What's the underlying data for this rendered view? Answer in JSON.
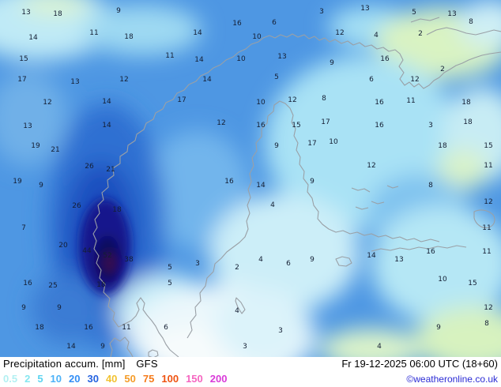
{
  "titlebar": {
    "product": "Precipitation accum.",
    "unit": "[mm]",
    "model": "GFS",
    "datetime": "Fr 19-12-2025 06:00 UTC (18+60)",
    "copyright": "©weatheronline.co.uk"
  },
  "legend": {
    "values": [
      {
        "label": "0.5",
        "color": "#b2f0f2"
      },
      {
        "label": "2",
        "color": "#86e7f0"
      },
      {
        "label": "5",
        "color": "#5cd4f0"
      },
      {
        "label": "10",
        "color": "#4cb2f8"
      },
      {
        "label": "20",
        "color": "#338ef5"
      },
      {
        "label": "30",
        "color": "#2563e0"
      },
      {
        "label": "40",
        "color": "#f2c231"
      },
      {
        "label": "50",
        "color": "#f59c28"
      },
      {
        "label": "75",
        "color": "#f57b1b"
      },
      {
        "label": "100",
        "color": "#ef5311"
      },
      {
        "label": "150",
        "color": "#f566c0"
      },
      {
        "label": "200",
        "color": "#d93ad9"
      }
    ]
  },
  "map": {
    "colors": {
      "ocean_base": "#4e97e3",
      "high_precip_core": "#0c0c5e",
      "coastline": "#9aa0a6"
    },
    "values": [
      [
        33,
        18,
        "13"
      ],
      [
        73,
        20,
        "18"
      ],
      [
        150,
        16,
        "9"
      ],
      [
        407,
        17,
        "3"
      ],
      [
        462,
        13,
        "13"
      ],
      [
        524,
        18,
        "5"
      ],
      [
        572,
        20,
        "13"
      ],
      [
        300,
        32,
        "16"
      ],
      [
        347,
        31,
        "6"
      ],
      [
        596,
        30,
        "8"
      ],
      [
        42,
        50,
        "14"
      ],
      [
        119,
        44,
        "11"
      ],
      [
        163,
        49,
        "18"
      ],
      [
        250,
        44,
        "14"
      ],
      [
        325,
        49,
        "10"
      ],
      [
        430,
        44,
        "12"
      ],
      [
        476,
        47,
        "4"
      ],
      [
        532,
        45,
        "2"
      ],
      [
        30,
        77,
        "15"
      ],
      [
        215,
        73,
        "11"
      ],
      [
        252,
        78,
        "14"
      ],
      [
        305,
        77,
        "10"
      ],
      [
        357,
        74,
        "13"
      ],
      [
        420,
        82,
        "9"
      ],
      [
        487,
        77,
        "16"
      ],
      [
        560,
        90,
        "2"
      ],
      [
        28,
        103,
        "17"
      ],
      [
        95,
        106,
        "13"
      ],
      [
        157,
        103,
        "12"
      ],
      [
        262,
        103,
        "14"
      ],
      [
        350,
        100,
        "5"
      ],
      [
        470,
        103,
        "6"
      ],
      [
        525,
        103,
        "12"
      ],
      [
        60,
        132,
        "12"
      ],
      [
        135,
        131,
        "14"
      ],
      [
        230,
        129,
        "17"
      ],
      [
        330,
        132,
        "10"
      ],
      [
        370,
        129,
        "12"
      ],
      [
        410,
        127,
        "8"
      ],
      [
        480,
        132,
        "16"
      ],
      [
        520,
        130,
        "11"
      ],
      [
        590,
        132,
        "18"
      ],
      [
        35,
        162,
        "13"
      ],
      [
        135,
        161,
        "14"
      ],
      [
        280,
        158,
        "12"
      ],
      [
        330,
        161,
        "16"
      ],
      [
        375,
        161,
        "15"
      ],
      [
        412,
        157,
        "17"
      ],
      [
        480,
        161,
        "16"
      ],
      [
        545,
        161,
        "3"
      ],
      [
        592,
        157,
        "18"
      ],
      [
        45,
        187,
        "19"
      ],
      [
        70,
        192,
        "21"
      ],
      [
        350,
        187,
        "9"
      ],
      [
        395,
        184,
        "17"
      ],
      [
        422,
        182,
        "10"
      ],
      [
        560,
        187,
        "18"
      ],
      [
        618,
        187,
        "15"
      ],
      [
        113,
        213,
        "26"
      ],
      [
        140,
        217,
        "21"
      ],
      [
        470,
        212,
        "12"
      ],
      [
        618,
        212,
        "11"
      ],
      [
        22,
        232,
        "19"
      ],
      [
        52,
        237,
        "9"
      ],
      [
        290,
        232,
        "16"
      ],
      [
        330,
        237,
        "14"
      ],
      [
        395,
        232,
        "9"
      ],
      [
        545,
        237,
        "8"
      ],
      [
        97,
        263,
        "26"
      ],
      [
        148,
        268,
        "18"
      ],
      [
        345,
        262,
        "4"
      ],
      [
        618,
        258,
        "12"
      ],
      [
        30,
        291,
        "7"
      ],
      [
        616,
        291,
        "11"
      ],
      [
        80,
        313,
        "20"
      ],
      [
        110,
        320,
        "44"
      ],
      [
        136,
        326,
        "52"
      ],
      [
        163,
        331,
        "38"
      ],
      [
        215,
        341,
        "5"
      ],
      [
        250,
        336,
        "3"
      ],
      [
        300,
        341,
        "2"
      ],
      [
        330,
        331,
        "4"
      ],
      [
        365,
        336,
        "6"
      ],
      [
        395,
        331,
        "9"
      ],
      [
        470,
        326,
        "14"
      ],
      [
        505,
        331,
        "13"
      ],
      [
        545,
        321,
        "16"
      ],
      [
        616,
        321,
        "11"
      ],
      [
        35,
        361,
        "16"
      ],
      [
        67,
        364,
        "25"
      ],
      [
        128,
        363,
        "18"
      ],
      [
        215,
        361,
        "5"
      ],
      [
        560,
        356,
        "10"
      ],
      [
        598,
        361,
        "15"
      ],
      [
        30,
        392,
        "9"
      ],
      [
        75,
        392,
        "9"
      ],
      [
        300,
        396,
        "4"
      ],
      [
        618,
        392,
        "12"
      ],
      [
        50,
        417,
        "18"
      ],
      [
        112,
        417,
        "16"
      ],
      [
        160,
        417,
        "11"
      ],
      [
        210,
        417,
        "6"
      ],
      [
        355,
        421,
        "3"
      ],
      [
        555,
        417,
        "9"
      ],
      [
        616,
        412,
        "8"
      ],
      [
        90,
        441,
        "14"
      ],
      [
        130,
        441,
        "9"
      ],
      [
        310,
        441,
        "3"
      ],
      [
        480,
        441,
        "4"
      ]
    ]
  }
}
